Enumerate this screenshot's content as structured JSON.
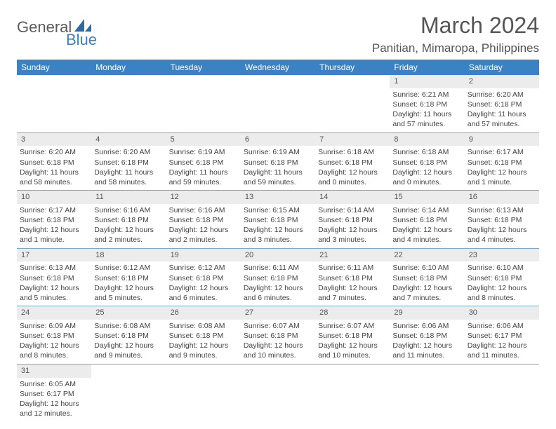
{
  "logo": {
    "part1": "General",
    "part2": "Blue"
  },
  "title": "March 2024",
  "location": "Panitian, Mimaropa, Philippines",
  "colors": {
    "header_bg": "#3b82c4",
    "header_text": "#ffffff",
    "daynum_bg": "#ececec",
    "row_border": "#7aa8d0",
    "text": "#444444",
    "title_color": "#555555"
  },
  "weekdays": [
    "Sunday",
    "Monday",
    "Tuesday",
    "Wednesday",
    "Thursday",
    "Friday",
    "Saturday"
  ],
  "weeks": [
    [
      {
        "day": "",
        "sunrise": "",
        "sunset": "",
        "daylight": ""
      },
      {
        "day": "",
        "sunrise": "",
        "sunset": "",
        "daylight": ""
      },
      {
        "day": "",
        "sunrise": "",
        "sunset": "",
        "daylight": ""
      },
      {
        "day": "",
        "sunrise": "",
        "sunset": "",
        "daylight": ""
      },
      {
        "day": "",
        "sunrise": "",
        "sunset": "",
        "daylight": ""
      },
      {
        "day": "1",
        "sunrise": "Sunrise: 6:21 AM",
        "sunset": "Sunset: 6:18 PM",
        "daylight": "Daylight: 11 hours and 57 minutes."
      },
      {
        "day": "2",
        "sunrise": "Sunrise: 6:20 AM",
        "sunset": "Sunset: 6:18 PM",
        "daylight": "Daylight: 11 hours and 57 minutes."
      }
    ],
    [
      {
        "day": "3",
        "sunrise": "Sunrise: 6:20 AM",
        "sunset": "Sunset: 6:18 PM",
        "daylight": "Daylight: 11 hours and 58 minutes."
      },
      {
        "day": "4",
        "sunrise": "Sunrise: 6:20 AM",
        "sunset": "Sunset: 6:18 PM",
        "daylight": "Daylight: 11 hours and 58 minutes."
      },
      {
        "day": "5",
        "sunrise": "Sunrise: 6:19 AM",
        "sunset": "Sunset: 6:18 PM",
        "daylight": "Daylight: 11 hours and 59 minutes."
      },
      {
        "day": "6",
        "sunrise": "Sunrise: 6:19 AM",
        "sunset": "Sunset: 6:18 PM",
        "daylight": "Daylight: 11 hours and 59 minutes."
      },
      {
        "day": "7",
        "sunrise": "Sunrise: 6:18 AM",
        "sunset": "Sunset: 6:18 PM",
        "daylight": "Daylight: 12 hours and 0 minutes."
      },
      {
        "day": "8",
        "sunrise": "Sunrise: 6:18 AM",
        "sunset": "Sunset: 6:18 PM",
        "daylight": "Daylight: 12 hours and 0 minutes."
      },
      {
        "day": "9",
        "sunrise": "Sunrise: 6:17 AM",
        "sunset": "Sunset: 6:18 PM",
        "daylight": "Daylight: 12 hours and 1 minute."
      }
    ],
    [
      {
        "day": "10",
        "sunrise": "Sunrise: 6:17 AM",
        "sunset": "Sunset: 6:18 PM",
        "daylight": "Daylight: 12 hours and 1 minute."
      },
      {
        "day": "11",
        "sunrise": "Sunrise: 6:16 AM",
        "sunset": "Sunset: 6:18 PM",
        "daylight": "Daylight: 12 hours and 2 minutes."
      },
      {
        "day": "12",
        "sunrise": "Sunrise: 6:16 AM",
        "sunset": "Sunset: 6:18 PM",
        "daylight": "Daylight: 12 hours and 2 minutes."
      },
      {
        "day": "13",
        "sunrise": "Sunrise: 6:15 AM",
        "sunset": "Sunset: 6:18 PM",
        "daylight": "Daylight: 12 hours and 3 minutes."
      },
      {
        "day": "14",
        "sunrise": "Sunrise: 6:14 AM",
        "sunset": "Sunset: 6:18 PM",
        "daylight": "Daylight: 12 hours and 3 minutes."
      },
      {
        "day": "15",
        "sunrise": "Sunrise: 6:14 AM",
        "sunset": "Sunset: 6:18 PM",
        "daylight": "Daylight: 12 hours and 4 minutes."
      },
      {
        "day": "16",
        "sunrise": "Sunrise: 6:13 AM",
        "sunset": "Sunset: 6:18 PM",
        "daylight": "Daylight: 12 hours and 4 minutes."
      }
    ],
    [
      {
        "day": "17",
        "sunrise": "Sunrise: 6:13 AM",
        "sunset": "Sunset: 6:18 PM",
        "daylight": "Daylight: 12 hours and 5 minutes."
      },
      {
        "day": "18",
        "sunrise": "Sunrise: 6:12 AM",
        "sunset": "Sunset: 6:18 PM",
        "daylight": "Daylight: 12 hours and 5 minutes."
      },
      {
        "day": "19",
        "sunrise": "Sunrise: 6:12 AM",
        "sunset": "Sunset: 6:18 PM",
        "daylight": "Daylight: 12 hours and 6 minutes."
      },
      {
        "day": "20",
        "sunrise": "Sunrise: 6:11 AM",
        "sunset": "Sunset: 6:18 PM",
        "daylight": "Daylight: 12 hours and 6 minutes."
      },
      {
        "day": "21",
        "sunrise": "Sunrise: 6:11 AM",
        "sunset": "Sunset: 6:18 PM",
        "daylight": "Daylight: 12 hours and 7 minutes."
      },
      {
        "day": "22",
        "sunrise": "Sunrise: 6:10 AM",
        "sunset": "Sunset: 6:18 PM",
        "daylight": "Daylight: 12 hours and 7 minutes."
      },
      {
        "day": "23",
        "sunrise": "Sunrise: 6:10 AM",
        "sunset": "Sunset: 6:18 PM",
        "daylight": "Daylight: 12 hours and 8 minutes."
      }
    ],
    [
      {
        "day": "24",
        "sunrise": "Sunrise: 6:09 AM",
        "sunset": "Sunset: 6:18 PM",
        "daylight": "Daylight: 12 hours and 8 minutes."
      },
      {
        "day": "25",
        "sunrise": "Sunrise: 6:08 AM",
        "sunset": "Sunset: 6:18 PM",
        "daylight": "Daylight: 12 hours and 9 minutes."
      },
      {
        "day": "26",
        "sunrise": "Sunrise: 6:08 AM",
        "sunset": "Sunset: 6:18 PM",
        "daylight": "Daylight: 12 hours and 9 minutes."
      },
      {
        "day": "27",
        "sunrise": "Sunrise: 6:07 AM",
        "sunset": "Sunset: 6:18 PM",
        "daylight": "Daylight: 12 hours and 10 minutes."
      },
      {
        "day": "28",
        "sunrise": "Sunrise: 6:07 AM",
        "sunset": "Sunset: 6:18 PM",
        "daylight": "Daylight: 12 hours and 10 minutes."
      },
      {
        "day": "29",
        "sunrise": "Sunrise: 6:06 AM",
        "sunset": "Sunset: 6:18 PM",
        "daylight": "Daylight: 12 hours and 11 minutes."
      },
      {
        "day": "30",
        "sunrise": "Sunrise: 6:06 AM",
        "sunset": "Sunset: 6:17 PM",
        "daylight": "Daylight: 12 hours and 11 minutes."
      }
    ],
    [
      {
        "day": "31",
        "sunrise": "Sunrise: 6:05 AM",
        "sunset": "Sunset: 6:17 PM",
        "daylight": "Daylight: 12 hours and 12 minutes."
      },
      {
        "day": "",
        "sunrise": "",
        "sunset": "",
        "daylight": ""
      },
      {
        "day": "",
        "sunrise": "",
        "sunset": "",
        "daylight": ""
      },
      {
        "day": "",
        "sunrise": "",
        "sunset": "",
        "daylight": ""
      },
      {
        "day": "",
        "sunrise": "",
        "sunset": "",
        "daylight": ""
      },
      {
        "day": "",
        "sunrise": "",
        "sunset": "",
        "daylight": ""
      },
      {
        "day": "",
        "sunrise": "",
        "sunset": "",
        "daylight": ""
      }
    ]
  ]
}
